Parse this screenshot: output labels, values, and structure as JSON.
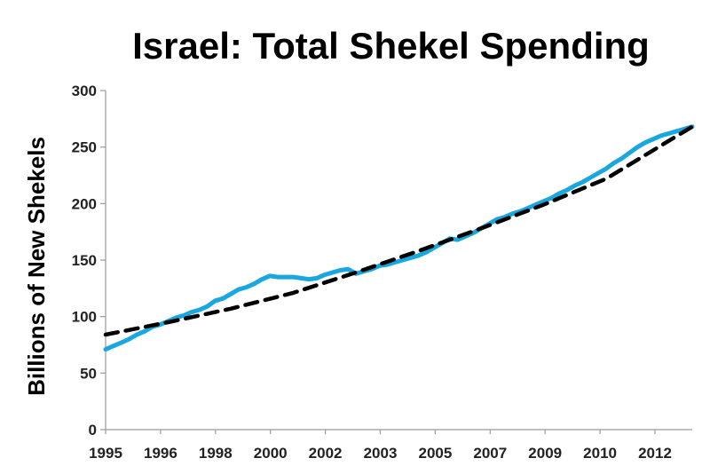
{
  "chart_data": {
    "type": "line",
    "title": "Israel: Total Shekel Spending",
    "xlabel": "",
    "ylabel": "Billions of New Shekels",
    "ylim": [
      0,
      300
    ],
    "yticks": [
      0,
      50,
      100,
      150,
      200,
      250,
      300
    ],
    "xlim": [
      1995.0,
      2013.75
    ],
    "xtick_labels": [
      "1995",
      "1996",
      "1998",
      "2000",
      "2002",
      "2003",
      "2005",
      "2007",
      "2009",
      "2010",
      "2012"
    ],
    "grid": false,
    "colors": {
      "actual": "#1aa7e0",
      "trend": "#000000"
    },
    "series": [
      {
        "style": "solid",
        "x": [
          1995.0,
          1995.25,
          1995.5,
          1995.75,
          1996.0,
          1996.25,
          1996.5,
          1996.75,
          1997.0,
          1997.25,
          1997.5,
          1997.75,
          1998.0,
          1998.25,
          1998.5,
          1998.75,
          1999.0,
          1999.25,
          1999.5,
          1999.75,
          2000.0,
          2000.25,
          2000.5,
          2000.75,
          2001.0,
          2001.25,
          2001.5,
          2001.75,
          2002.0,
          2002.25,
          2002.5,
          2002.75,
          2003.0,
          2003.25,
          2003.5,
          2003.75,
          2004.0,
          2004.25,
          2004.5,
          2004.75,
          2005.0,
          2005.25,
          2005.5,
          2005.75,
          2006.0,
          2006.25,
          2006.5,
          2006.75,
          2007.0,
          2007.25,
          2007.5,
          2007.75,
          2008.0,
          2008.25,
          2008.5,
          2008.75,
          2009.0,
          2009.25,
          2009.5,
          2009.75,
          2010.0,
          2010.25,
          2010.5,
          2010.75,
          2011.0,
          2011.25,
          2011.5,
          2011.75,
          2012.0,
          2012.25,
          2012.5,
          2012.75,
          2013.0,
          2013.25,
          2013.5,
          2013.75
        ],
        "values": [
          71,
          74,
          77,
          80,
          84,
          87,
          91,
          93,
          96,
          99,
          101,
          104,
          106,
          109,
          114,
          116,
          120,
          124,
          126,
          129,
          133,
          136,
          135,
          135,
          135,
          134,
          133,
          134,
          137,
          139,
          141,
          142,
          138,
          140,
          142,
          145,
          146,
          148,
          150,
          152,
          154,
          157,
          161,
          165,
          169,
          168,
          171,
          174,
          178,
          182,
          186,
          188,
          191,
          193,
          196,
          199,
          202,
          205,
          209,
          212,
          216,
          219,
          223,
          227,
          231,
          236,
          240,
          245,
          250,
          254,
          257,
          260,
          262,
          264,
          266,
          268
        ]
      },
      {
        "style": "dashed",
        "x": [
          1995.0,
          1997.0,
          1999.0,
          2001.0,
          2003.0,
          2005.0,
          2007.0,
          2009.0,
          2011.0,
          2013.75
        ],
        "values": [
          84,
          95,
          107,
          121,
          139,
          158,
          178,
          199,
          222,
          268
        ]
      }
    ]
  }
}
